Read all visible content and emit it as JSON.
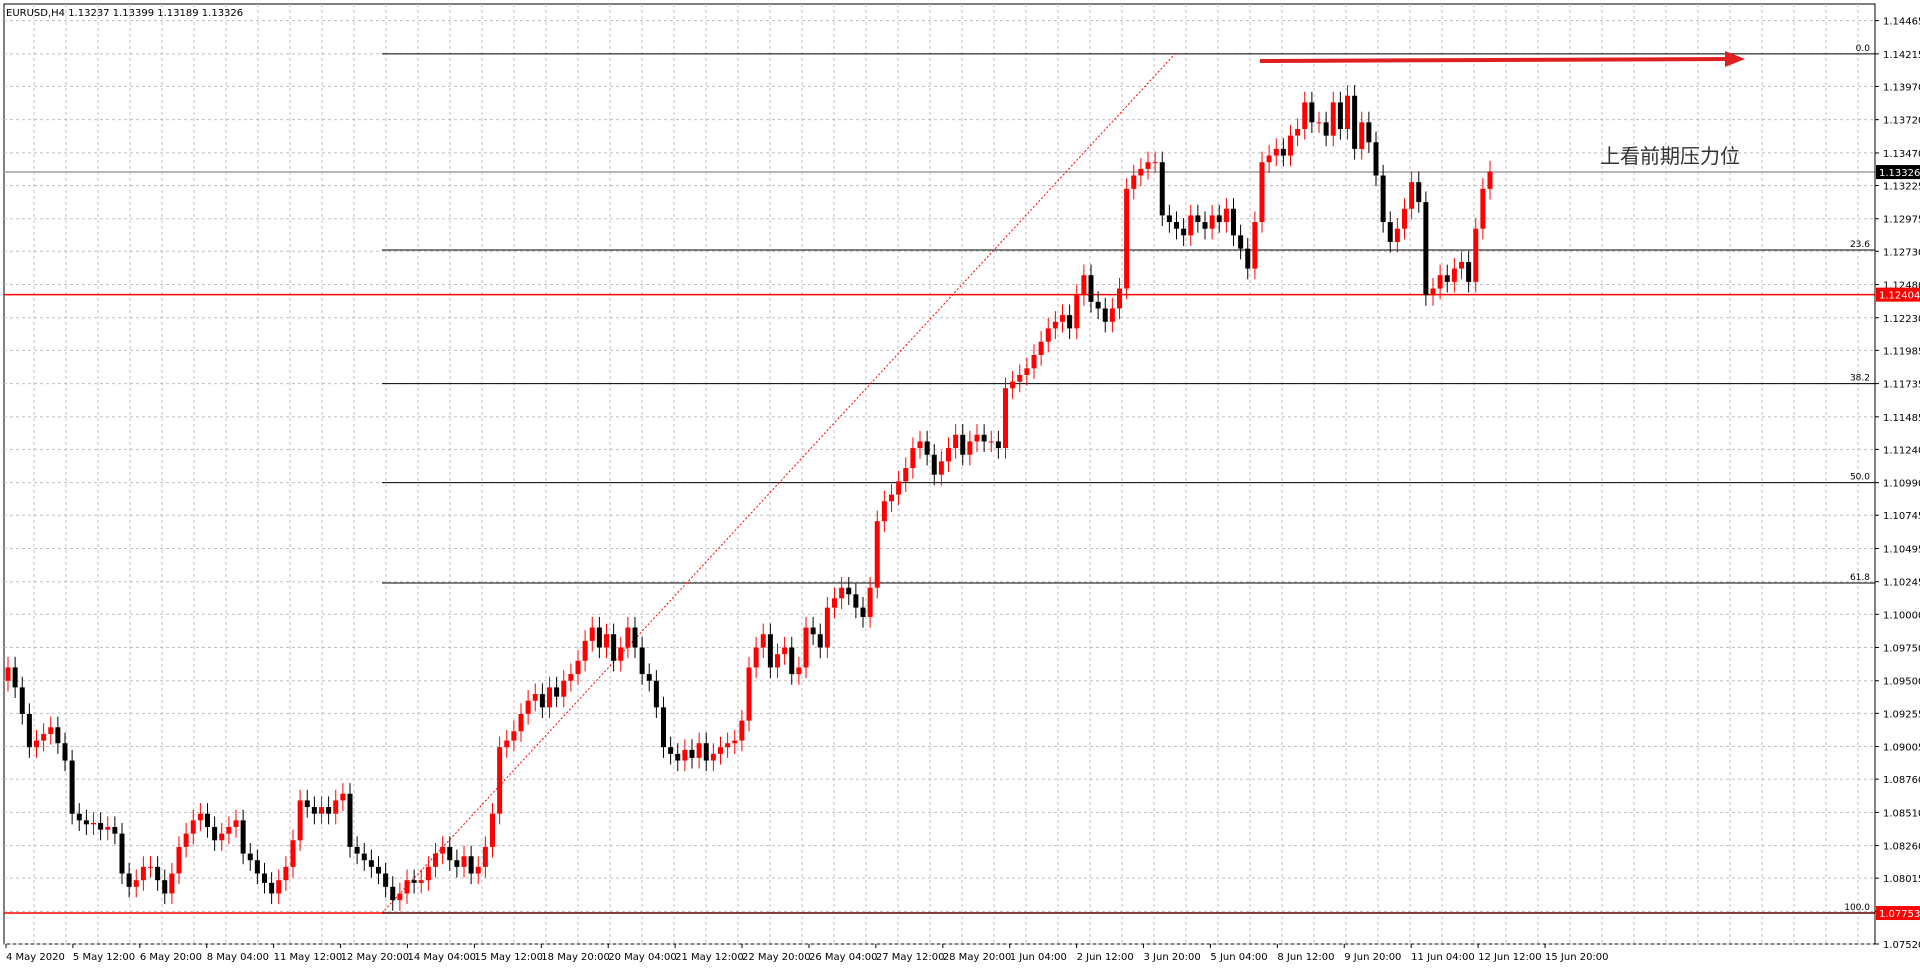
{
  "chart_info": "EURUSD,H4  1.13237 1.13399 1.13189 1.13326",
  "annotation": "上看前期压力位",
  "colors": {
    "up": "#ff0000",
    "down": "#000000",
    "grid": "#c0c0c0",
    "fib": "#000000",
    "level": "#ff0000",
    "price_tag_text": "#ffffff",
    "arrow": "#e02020"
  },
  "chart_data": {
    "type": "candlestick",
    "ylim": [
      1.0752,
      1.1459
    ],
    "y_ticks": [
      "1.14465",
      "1.14215",
      "1.13970",
      "1.13720",
      "1.13470",
      "1.13225",
      "1.12975",
      "1.12730",
      "1.12480",
      "1.12230",
      "1.11985",
      "1.11735",
      "1.11485",
      "1.11240",
      "1.10990",
      "1.10745",
      "1.10495",
      "1.10245",
      "1.10000",
      "1.09750",
      "1.09500",
      "1.09255",
      "1.09005",
      "1.08760",
      "1.08510",
      "1.08260",
      "1.08015",
      "1.07765",
      "1.07520"
    ],
    "x_ticks": [
      "4 May 2020",
      "5 May 12:00",
      "6 May 20:00",
      "8 May 04:00",
      "11 May 12:00",
      "12 May 20:00",
      "14 May 04:00",
      "15 May 12:00",
      "18 May 20:00",
      "20 May 04:00",
      "21 May 12:00",
      "22 May 20:00",
      "26 May 04:00",
      "27 May 12:00",
      "28 May 20:00",
      "1 Jun 04:00",
      "2 Jun 12:00",
      "3 Jun 20:00",
      "5 Jun 04:00",
      "8 Jun 12:00",
      "9 Jun 20:00",
      "11 Jun 04:00",
      "12 Jun 12:00",
      "15 Jun 20:00"
    ],
    "price_tags": [
      {
        "value": 1.13326,
        "label": "1.13326",
        "color": "#000000"
      },
      {
        "value": 1.12404,
        "label": "1.12404",
        "color": "#ff0000"
      },
      {
        "value": 1.07753,
        "label": "1.07753",
        "color": "#ff0000"
      }
    ],
    "horizontal_lines": [
      {
        "value": 1.12404,
        "color": "#ff0000"
      },
      {
        "value": 1.07753,
        "color": "#ff0000"
      },
      {
        "value": 1.13326,
        "color": "#a0a0a0"
      }
    ],
    "fibonacci": [
      {
        "label": "0.0",
        "value": 1.14215
      },
      {
        "label": "23.6",
        "value": 1.1274
      },
      {
        "label": "38.2",
        "value": 1.11735
      },
      {
        "label": "50.0",
        "value": 1.1099
      },
      {
        "label": "61.8",
        "value": 1.10235
      },
      {
        "label": "100.0",
        "value": 1.07753
      }
    ],
    "close": [
      1.096,
      1.0945,
      1.0925,
      1.09,
      1.0905,
      1.091,
      1.0915,
      1.0903,
      1.089,
      1.085,
      1.0845,
      1.0842,
      1.0843,
      1.0838,
      1.084,
      1.0835,
      1.0805,
      1.0795,
      1.08,
      1.081,
      1.081,
      1.08,
      1.079,
      1.0805,
      1.0825,
      1.0835,
      1.0845,
      1.085,
      1.084,
      1.083,
      1.0835,
      1.084,
      1.0845,
      1.082,
      1.0815,
      1.0805,
      1.0798,
      1.079,
      1.08,
      1.081,
      1.083,
      1.086,
      1.0855,
      1.085,
      1.0855,
      1.085,
      1.086,
      1.0865,
      1.0825,
      1.082,
      1.0815,
      1.081,
      1.0805,
      1.0795,
      1.0785,
      1.079,
      1.08,
      1.0798,
      1.08,
      1.081,
      1.082,
      1.0825,
      1.0815,
      1.081,
      1.0818,
      1.0805,
      1.081,
      1.0825,
      1.085,
      1.09,
      1.0905,
      1.0912,
      1.0925,
      1.0935,
      1.094,
      1.093,
      1.0945,
      1.0938,
      1.095,
      1.0955,
      1.0965,
      1.098,
      1.099,
      1.0975,
      1.0985,
      1.0965,
      1.0975,
      1.099,
      1.0975,
      1.0955,
      1.095,
      1.093,
      1.09,
      1.0895,
      1.089,
      1.0898,
      1.0892,
      1.0903,
      1.089,
      1.0895,
      1.09,
      1.0903,
      1.0905,
      1.092,
      1.096,
      1.0975,
      1.0985,
      1.096,
      1.097,
      1.0975,
      1.0955,
      1.096,
      1.099,
      1.0985,
      1.0975,
      1.1005,
      1.1012,
      1.102,
      1.1015,
      1.1005,
      1.0998,
      1.102,
      1.107,
      1.1085,
      1.109,
      1.11,
      1.111,
      1.1125,
      1.113,
      1.112,
      1.1105,
      1.1115,
      1.1125,
      1.1135,
      1.112,
      1.113,
      1.1135,
      1.113,
      1.113,
      1.1125,
      1.117,
      1.1175,
      1.118,
      1.1185,
      1.1195,
      1.1205,
      1.1215,
      1.122,
      1.1225,
      1.1215,
      1.124,
      1.1255,
      1.1235,
      1.123,
      1.122,
      1.123,
      1.1245,
      1.132,
      1.133,
      1.1335,
      1.134,
      1.134,
      1.13,
      1.1295,
      1.129,
      1.1285,
      1.13,
      1.1295,
      1.129,
      1.13,
      1.1295,
      1.1305,
      1.1285,
      1.1275,
      1.126,
      1.1295,
      1.134,
      1.1345,
      1.135,
      1.1345,
      1.136,
      1.1365,
      1.1385,
      1.137,
      1.137,
      1.136,
      1.1385,
      1.1365,
      1.139,
      1.135,
      1.137,
      1.1355,
      1.133,
      1.1295,
      1.128,
      1.129,
      1.1305,
      1.1325,
      1.131,
      1.124,
      1.1245,
      1.1255,
      1.125,
      1.126,
      1.1265,
      1.125,
      1.129,
      1.132,
      1.1333
    ],
    "open": [
      1.095,
      1.096,
      1.0945,
      1.0925,
      1.09,
      1.0905,
      1.091,
      1.0915,
      1.0903,
      1.089,
      1.085,
      1.0845,
      1.0842,
      1.0843,
      1.0838,
      1.084,
      1.0835,
      1.0805,
      1.0795,
      1.08,
      1.081,
      1.081,
      1.08,
      1.079,
      1.0805,
      1.0825,
      1.0835,
      1.0845,
      1.085,
      1.084,
      1.083,
      1.0835,
      1.084,
      1.0845,
      1.082,
      1.0815,
      1.0805,
      1.0798,
      1.079,
      1.08,
      1.081,
      1.083,
      1.086,
      1.0855,
      1.085,
      1.0855,
      1.085,
      1.086,
      1.0865,
      1.0825,
      1.082,
      1.0815,
      1.081,
      1.0805,
      1.0795,
      1.0785,
      1.079,
      1.08,
      1.0798,
      1.08,
      1.081,
      1.082,
      1.0825,
      1.0815,
      1.081,
      1.0818,
      1.0805,
      1.081,
      1.0825,
      1.085,
      1.09,
      1.0905,
      1.0912,
      1.0925,
      1.0935,
      1.094,
      1.093,
      1.0945,
      1.0938,
      1.095,
      1.0955,
      1.0965,
      1.098,
      1.099,
      1.0975,
      1.0985,
      1.0965,
      1.0975,
      1.099,
      1.0975,
      1.0955,
      1.095,
      1.093,
      1.09,
      1.0895,
      1.089,
      1.0898,
      1.0892,
      1.0903,
      1.089,
      1.0895,
      1.09,
      1.0903,
      1.0905,
      1.092,
      1.096,
      1.0975,
      1.0985,
      1.096,
      1.097,
      1.0975,
      1.0955,
      1.096,
      1.099,
      1.0985,
      1.0975,
      1.1005,
      1.1012,
      1.102,
      1.1015,
      1.1005,
      1.0998,
      1.102,
      1.107,
      1.1085,
      1.109,
      1.11,
      1.111,
      1.1125,
      1.113,
      1.112,
      1.1105,
      1.1115,
      1.1125,
      1.1135,
      1.112,
      1.113,
      1.1135,
      1.113,
      1.113,
      1.1125,
      1.117,
      1.1175,
      1.118,
      1.1185,
      1.1195,
      1.1205,
      1.1215,
      1.122,
      1.1225,
      1.1215,
      1.124,
      1.1255,
      1.1235,
      1.123,
      1.122,
      1.123,
      1.1245,
      1.132,
      1.133,
      1.1335,
      1.134,
      1.134,
      1.13,
      1.1295,
      1.129,
      1.1285,
      1.13,
      1.1295,
      1.129,
      1.13,
      1.1295,
      1.1305,
      1.1285,
      1.1275,
      1.126,
      1.1295,
      1.134,
      1.1345,
      1.135,
      1.1345,
      1.136,
      1.1365,
      1.1385,
      1.137,
      1.137,
      1.136,
      1.1385,
      1.1365,
      1.139,
      1.135,
      1.137,
      1.1355,
      1.133,
      1.1295,
      1.128,
      1.129,
      1.1305,
      1.1325,
      1.131,
      1.124,
      1.1245,
      1.1255,
      1.125,
      1.126,
      1.1265,
      1.125,
      1.129,
      1.132
    ]
  }
}
